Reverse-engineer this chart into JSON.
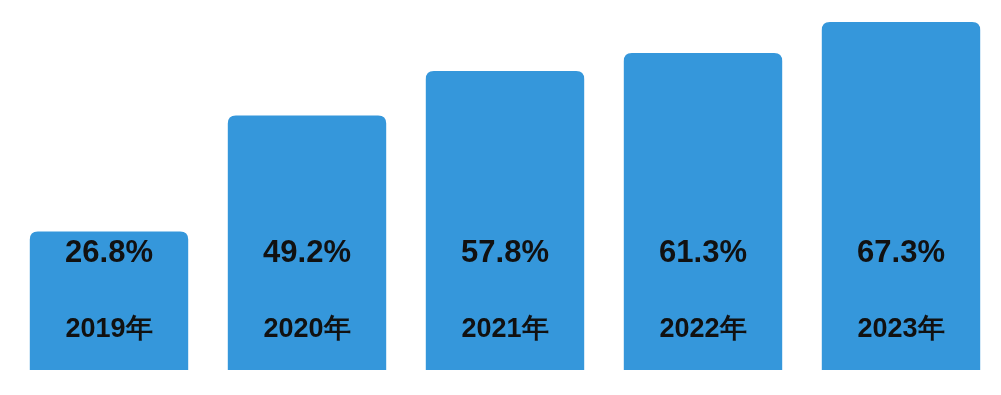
{
  "chart_data": {
    "type": "bar",
    "categories": [
      "2019年",
      "2020年",
      "2021年",
      "2022年",
      "2023年"
    ],
    "values": [
      26.8,
      49.2,
      57.8,
      61.3,
      67.3
    ],
    "value_labels": [
      "26.8%",
      "49.2%",
      "57.8%",
      "61.3%",
      "67.3%"
    ],
    "color": "#3597db"
  }
}
